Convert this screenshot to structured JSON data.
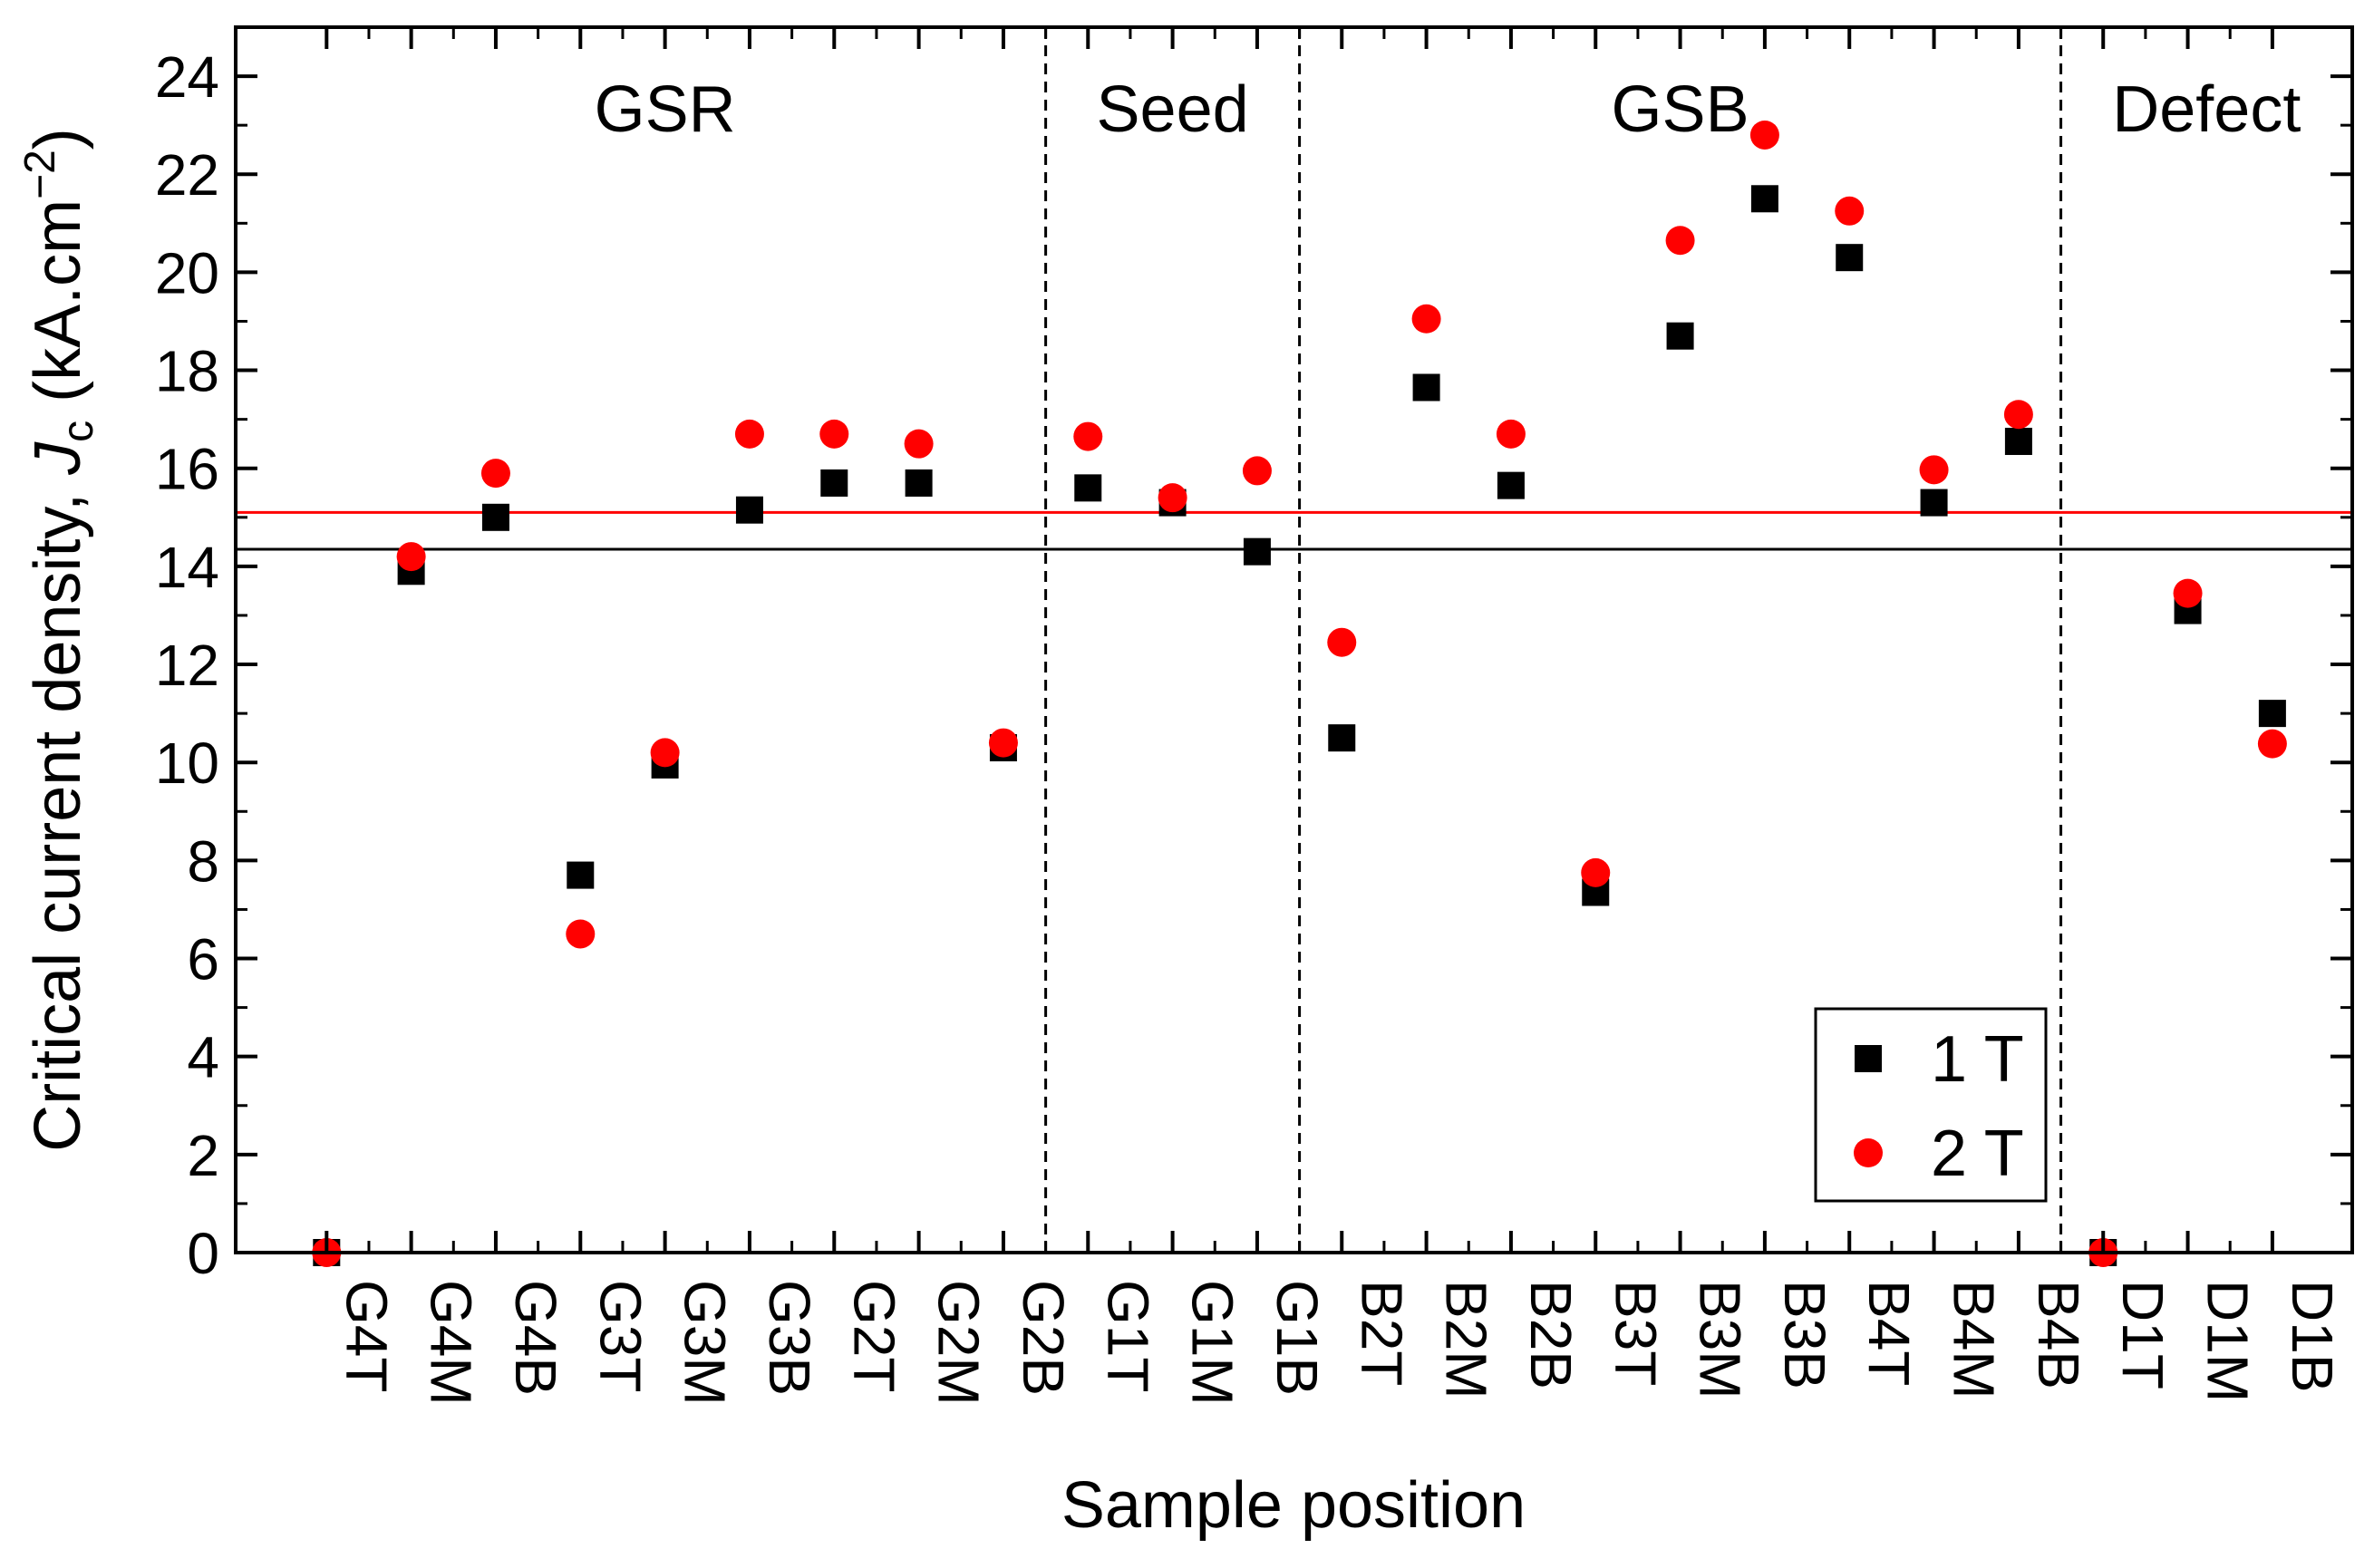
{
  "chart_data": {
    "type": "scatter",
    "xlabel": "Sample position",
    "ylabel": {
      "prefix": "Critical current density, ",
      "italic": "J",
      "sub": "c",
      "unit_prefix": " (kA.cm",
      "sup": "−2",
      "unit_suffix": ")"
    },
    "categories": [
      "G4T",
      "G4M",
      "G4B",
      "G3T",
      "G3M",
      "G3B",
      "G2T",
      "G2M",
      "G2B",
      "G1T",
      "G1M",
      "G1B",
      "B2T",
      "B2M",
      "B2B",
      "B3T",
      "B3M",
      "B3B",
      "B4T",
      "B4M",
      "B4B",
      "D1T",
      "D1M",
      "D1B"
    ],
    "ylim": [
      0,
      25
    ],
    "yticks": [
      0,
      2,
      4,
      6,
      8,
      10,
      12,
      14,
      16,
      18,
      20,
      22,
      24
    ],
    "series": [
      {
        "name": "1 T",
        "marker": "square",
        "color": "#000000",
        "values": [
          0,
          13.9,
          15.0,
          7.7,
          9.95,
          15.15,
          15.7,
          15.7,
          10.3,
          15.6,
          15.3,
          14.3,
          10.5,
          17.65,
          15.65,
          7.35,
          18.7,
          21.5,
          20.3,
          15.3,
          16.55,
          0,
          13.1,
          11.0
        ]
      },
      {
        "name": "2 T",
        "marker": "circle",
        "color": "#ff0000",
        "values": [
          0,
          14.2,
          15.9,
          6.5,
          10.2,
          16.7,
          16.7,
          16.5,
          10.4,
          16.65,
          15.4,
          15.95,
          12.45,
          19.05,
          16.7,
          7.75,
          20.65,
          22.8,
          21.25,
          15.97,
          17.1,
          0,
          13.45,
          10.38
        ]
      }
    ],
    "reference_lines": [
      {
        "value": 15.1,
        "color": "#ff0000"
      },
      {
        "value": 14.35,
        "color": "#000000"
      }
    ],
    "regions": [
      {
        "label": "GSR",
        "from": 0,
        "to": 8
      },
      {
        "label": "Seed",
        "from": 9,
        "to": 11
      },
      {
        "label": "GSB",
        "from": 12,
        "to": 20
      },
      {
        "label": "Defect",
        "from": 21,
        "to": 23
      }
    ],
    "legend_position": "bottom-right",
    "grid": false
  }
}
